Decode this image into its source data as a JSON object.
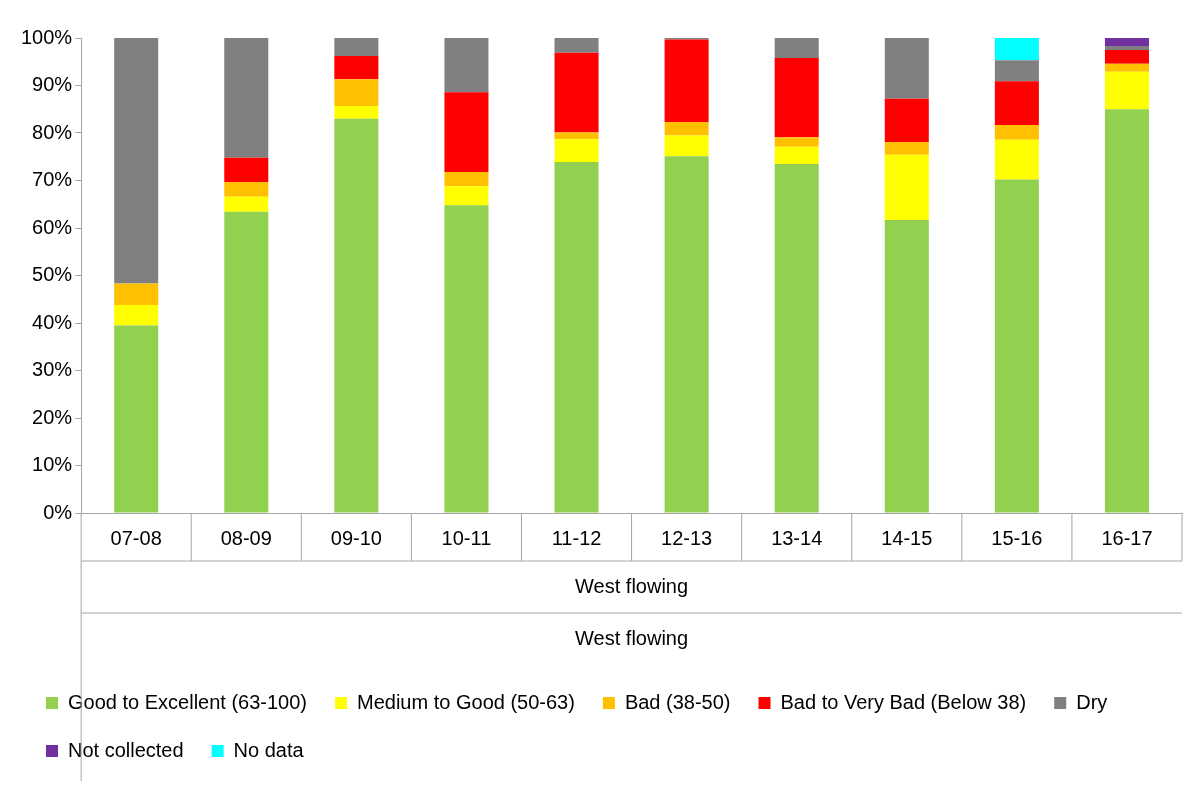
{
  "chart_data": {
    "type": "bar",
    "stacked": true,
    "categories": [
      "07-08",
      "08-09",
      "09-10",
      "10-11",
      "11-12",
      "12-13",
      "13-14",
      "14-15",
      "15-16",
      "16-17"
    ],
    "series": [
      {
        "name": "Good to Excellent (63-100)",
        "color": "#92d050",
        "values": [
          39.5,
          63.4,
          83.0,
          64.8,
          73.9,
          75.1,
          73.5,
          61.7,
          70.2,
          85.0
        ]
      },
      {
        "name": "Medium to Good (50-63)",
        "color": "#ffff00",
        "values": [
          4.3,
          3.2,
          2.7,
          4.0,
          4.8,
          4.4,
          3.6,
          13.7,
          8.4,
          7.9
        ]
      },
      {
        "name": "Bad (38-50)",
        "color": "#ffc000",
        "values": [
          4.5,
          3.1,
          5.6,
          3.0,
          1.4,
          2.8,
          2.0,
          2.7,
          3.1,
          1.7
        ]
      },
      {
        "name": "Bad to Very Bad (Below 38)",
        "color": "#ff0000",
        "values": [
          null,
          5.1,
          4.9,
          16.8,
          16.8,
          17.4,
          16.7,
          9.1,
          9.2,
          2.9
        ]
      },
      {
        "name": "Dry",
        "color": "#808080",
        "values": [
          51.7,
          25.2,
          3.8,
          11.4,
          3.1,
          0.3,
          4.2,
          12.8,
          4.4,
          0.8
        ]
      },
      {
        "name": "Not collected",
        "color": "#7030a0",
        "values": [
          null,
          null,
          null,
          null,
          null,
          null,
          null,
          null,
          null,
          1.7
        ]
      },
      {
        "name": "No data",
        "color": "#00ffff",
        "values": [
          null,
          null,
          null,
          null,
          null,
          null,
          null,
          null,
          4.7,
          null
        ]
      }
    ],
    "ylim": [
      0,
      100
    ],
    "yticks": [
      {
        "value": 0,
        "label": "0%"
      },
      {
        "value": 10,
        "label": "10%"
      },
      {
        "value": 20,
        "label": "20%"
      },
      {
        "value": 30,
        "label": "30%"
      },
      {
        "value": 40,
        "label": "40%"
      },
      {
        "value": 50,
        "label": "50%"
      },
      {
        "value": 60,
        "label": "60%"
      },
      {
        "value": 70,
        "label": "70%"
      },
      {
        "value": 80,
        "label": "80%"
      },
      {
        "value": 90,
        "label": "90%"
      },
      {
        "value": 100,
        "label": "100%"
      }
    ],
    "grid": false,
    "legend": "bottom",
    "annotations": [
      "West flowing",
      "West flowing"
    ]
  }
}
